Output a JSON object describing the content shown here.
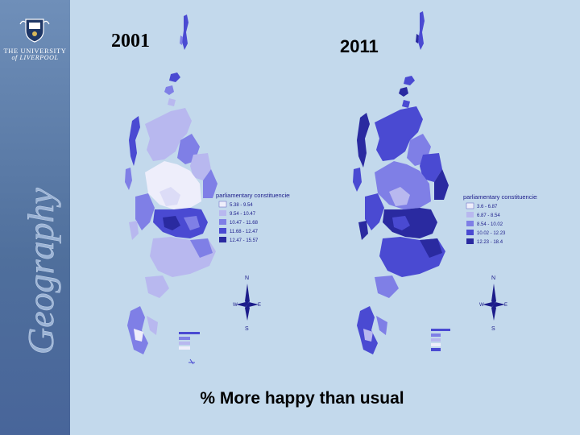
{
  "sidebar": {
    "university_line1": "THE UNIVERSITY",
    "university_line2": "of LIVERPOOL",
    "vertical_word": "Geography",
    "crest_icon": "university-crest-icon"
  },
  "maps": [
    {
      "year": "2001",
      "legend_title": "parliamentary constituencies",
      "legend_ranges": [
        "5.38 - 9.54",
        "9.54 - 10.47",
        "10.47 - 11.68",
        "11.68 - 12.47",
        "12.47 - 15.57"
      ],
      "legend_colors": [
        "#eeeefb",
        "#b8b8ef",
        "#7f7fe6",
        "#4a4ad2",
        "#2a2aa0"
      ]
    },
    {
      "year": "2011",
      "legend_title": "parliamentary constituencies",
      "legend_ranges": [
        "3.6 - 6.87",
        "6.87 - 8.54",
        "8.54 - 10.02",
        "10.02 - 12.23",
        "12.23 - 18.4"
      ],
      "legend_colors": [
        "#eeeefb",
        "#b8b8ef",
        "#7f7fe6",
        "#4a4ad2",
        "#2a2aa0"
      ]
    }
  ],
  "north_arrow": {
    "n": "N",
    "s": "S",
    "w": "W",
    "e": "E"
  },
  "caption": "% More happy than usual",
  "colors": {
    "background": "#c3d9ec",
    "sidebar": "#5674a3"
  }
}
